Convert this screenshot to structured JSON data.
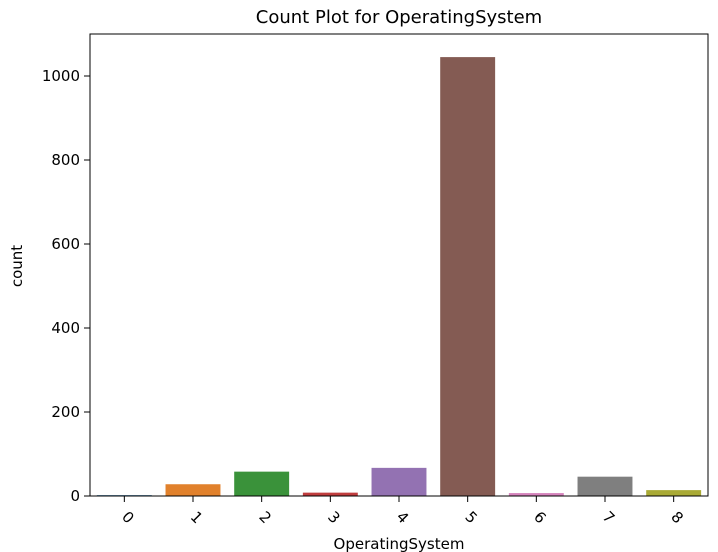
{
  "chart_data": {
    "type": "bar",
    "title": "Count Plot for OperatingSystem",
    "xlabel": "OperatingSystem",
    "ylabel": "count",
    "categories": [
      "0",
      "1",
      "2",
      "3",
      "4",
      "5",
      "6",
      "7",
      "8"
    ],
    "values": [
      2,
      28,
      58,
      8,
      67,
      1045,
      7,
      46,
      14
    ],
    "colors": [
      "#3274a1",
      "#e1812c",
      "#3a923a",
      "#c03d3e",
      "#9372b2",
      "#845b53",
      "#d684bd",
      "#7f7f7f",
      "#a9aa35"
    ],
    "ylim": [
      0,
      1100
    ],
    "yticks": [
      0,
      200,
      400,
      600,
      800,
      1000
    ],
    "grid": false,
    "legend": "none"
  }
}
